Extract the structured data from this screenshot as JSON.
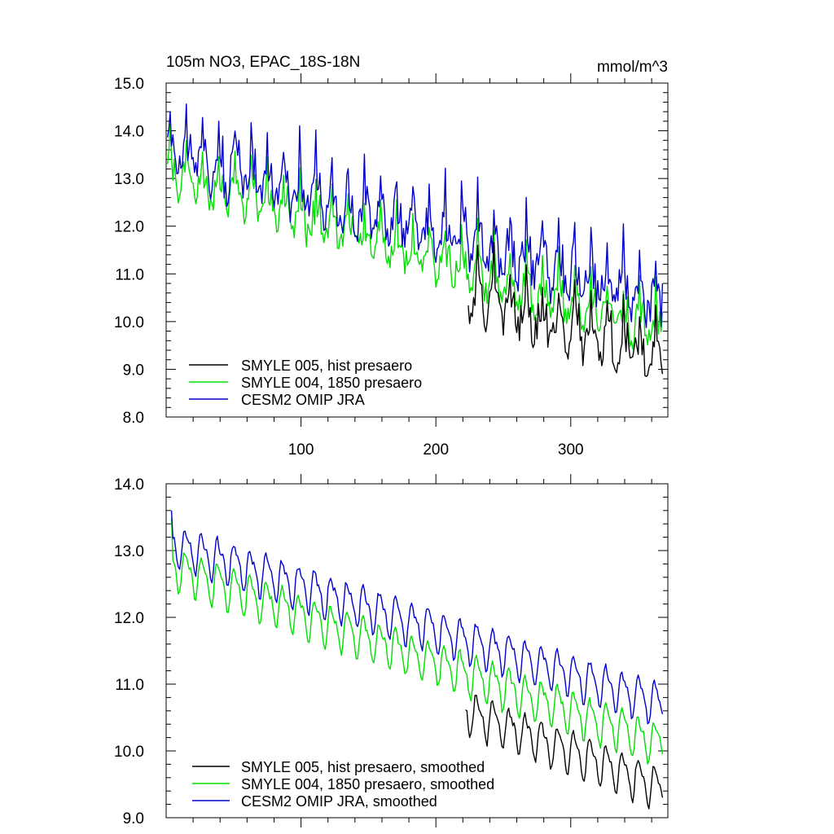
{
  "chart_data": [
    {
      "type": "line",
      "title": "105m NO3, EPAC_18S-18N",
      "units": "mmol/m^3",
      "xlabel": "",
      "ylabel": "",
      "xlim": [
        0,
        372
      ],
      "ylim": [
        8.0,
        15.0
      ],
      "xticks": [
        100,
        200,
        300
      ],
      "xtick_labels": [
        "100",
        "200",
        "300"
      ],
      "yticks": [
        8.0,
        9.0,
        10.0,
        11.0,
        12.0,
        13.0,
        14.0,
        15.0
      ],
      "ytick_labels": [
        "8.0",
        "9.0",
        "10.0",
        "11.0",
        "12.0",
        "13.0",
        "14.0",
        "15.0"
      ],
      "legend_position": "bottom-left",
      "series": [
        {
          "name": "SMYLE 005, hist presaero",
          "color": "#000000",
          "start": 224,
          "end": 368,
          "y_start": 10.7,
          "y_end": 9.3,
          "amp": 0.55,
          "noise": 0.35,
          "final": 8.9
        },
        {
          "name": "SMYLE 004, 1850 presaero",
          "color": "#00e000",
          "start": 1,
          "end": 368,
          "y_start": 13.2,
          "y_end": 9.9,
          "amp": 0.5,
          "noise": 0.3,
          "final": 10.2
        },
        {
          "name": "CESM2 OMIP JRA",
          "color": "#0000cc",
          "start": 1,
          "end": 368,
          "y_start": 13.7,
          "y_end": 10.6,
          "amp": 0.6,
          "noise": 0.4,
          "final": 10.8
        }
      ]
    },
    {
      "type": "line",
      "title": "",
      "xlabel": "",
      "ylabel": "",
      "xlim": [
        0,
        372
      ],
      "ylim": [
        9.0,
        14.0
      ],
      "xticks": [
        100,
        200,
        300
      ],
      "xtick_labels": [],
      "yticks": [
        9.0,
        10.0,
        11.0,
        12.0,
        13.0,
        14.0
      ],
      "ytick_labels": [
        "9.0",
        "10.0",
        "11.0",
        "12.0",
        "13.0",
        "14.0"
      ],
      "legend_position": "bottom-left",
      "series": [
        {
          "name": "SMYLE 005, hist presaero, smoothed",
          "color": "#000000",
          "start": 222,
          "end": 368,
          "y_start": 10.6,
          "y_end": 9.45,
          "amp": 0.28,
          "noise": 0.05,
          "final": 9.3
        },
        {
          "name": "SMYLE 004, 1850 presaero, smoothed",
          "color": "#00e000",
          "start": 4,
          "end": 368,
          "y_start": 12.75,
          "y_end": 10.1,
          "amp": 0.28,
          "noise": 0.05,
          "final": 9.95,
          "first": 13.5
        },
        {
          "name": "CESM2 OMIP JRA, smoothed",
          "color": "#0000cc",
          "start": 4,
          "end": 368,
          "y_start": 13.1,
          "y_end": 10.7,
          "amp": 0.28,
          "noise": 0.05,
          "final": 10.55,
          "first": 13.6
        }
      ]
    }
  ]
}
